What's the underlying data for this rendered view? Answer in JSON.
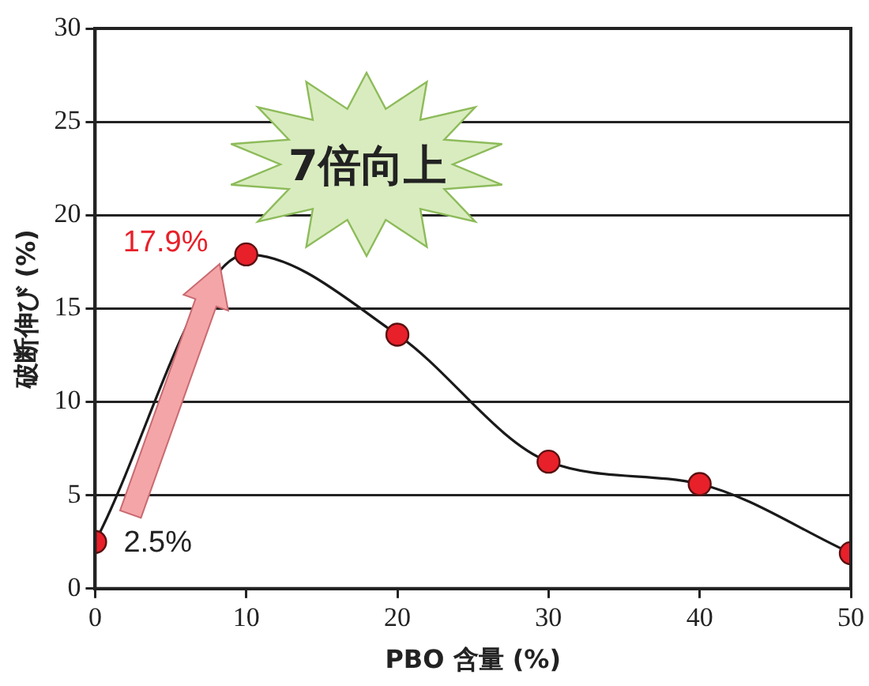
{
  "chart_data": {
    "type": "line",
    "xlabel": "PBO 含量 (%)",
    "ylabel": "破断伸び (%)",
    "x": [
      0,
      10,
      20,
      30,
      40,
      50
    ],
    "series": [
      {
        "color": "#e8202a",
        "values": [
          2.5,
          17.9,
          13.6,
          6.8,
          5.6,
          1.9
        ]
      }
    ],
    "xlim": [
      0,
      50
    ],
    "xticks": [
      0,
      10,
      20,
      30,
      40,
      50
    ],
    "ylim": [
      0,
      30
    ],
    "yticks": [
      0,
      5,
      10,
      15,
      20,
      25,
      30
    ],
    "grid": "y",
    "legend": false,
    "marker": "circle",
    "line_style": "solid",
    "annotations": [
      {
        "text": "17.9%",
        "x": 10,
        "y": 17.9
      },
      {
        "text": "2.5%",
        "x": 0,
        "y": 2.5
      },
      "7倍向上"
    ]
  }
}
